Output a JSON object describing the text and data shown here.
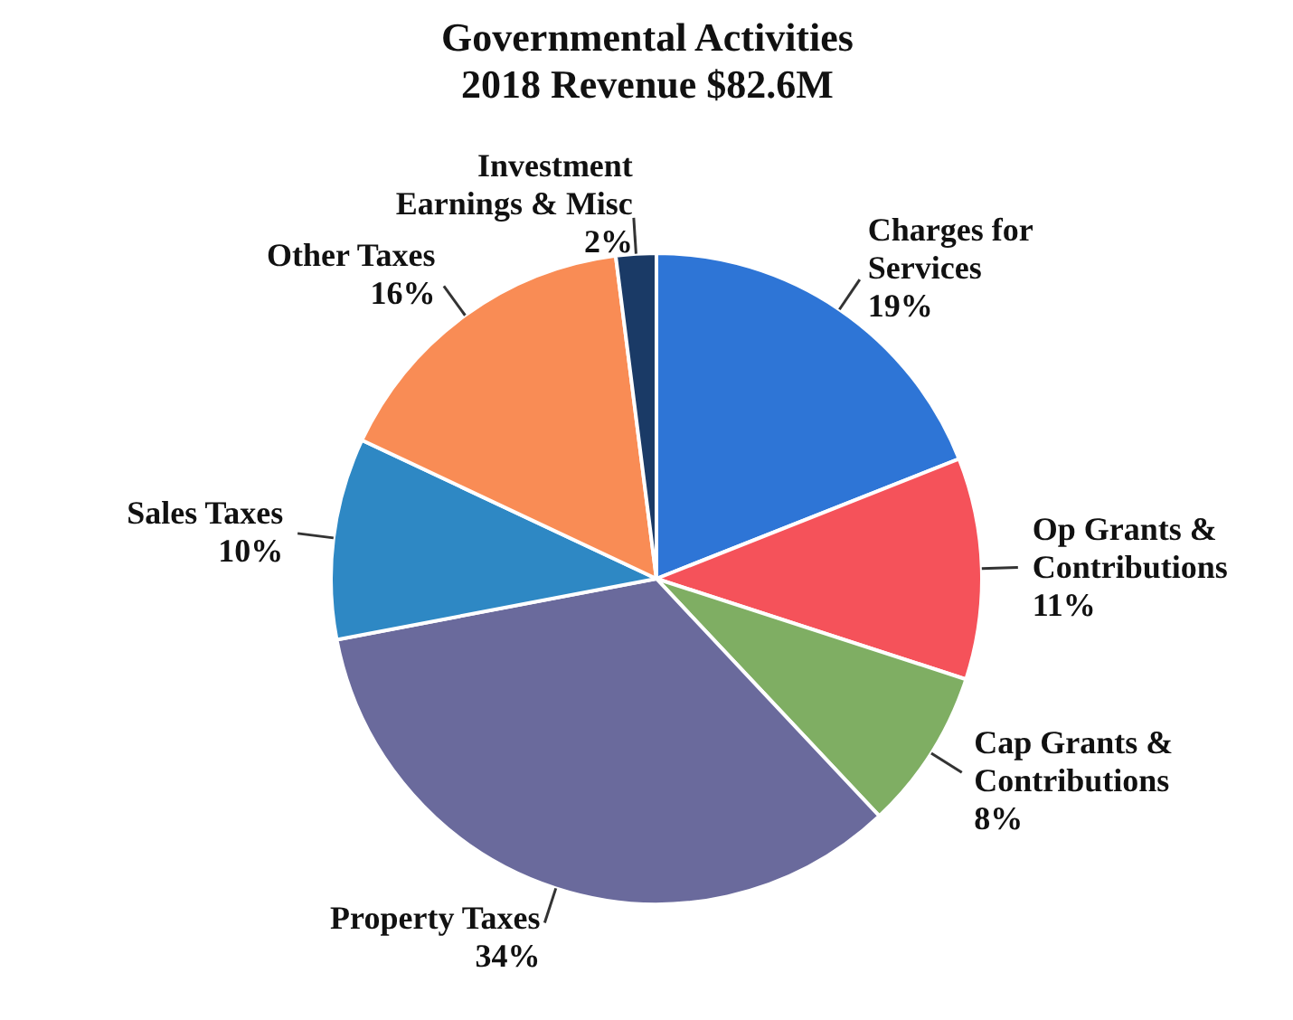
{
  "chart_data": {
    "type": "pie",
    "title": "Governmental Activities",
    "subtitle": "2018 Revenue $82.6M",
    "categories": [
      "Charges for Services",
      "Op Grants & Contributions",
      "Cap Grants & Contributions",
      "Property Taxes",
      "Sales Taxes",
      "Other Taxes",
      "Investment Earnings & Misc"
    ],
    "values": [
      19,
      11,
      8,
      34,
      10,
      16,
      2
    ],
    "value_labels": [
      "19%",
      "11%",
      "8%",
      "34%",
      "10%",
      "16%",
      "2%"
    ],
    "colors": [
      "#2e75d6",
      "#f5525a",
      "#7fae63",
      "#6a6a9c",
      "#2e88c4",
      "#f98c55",
      "#1a3a66"
    ],
    "legend": false
  }
}
